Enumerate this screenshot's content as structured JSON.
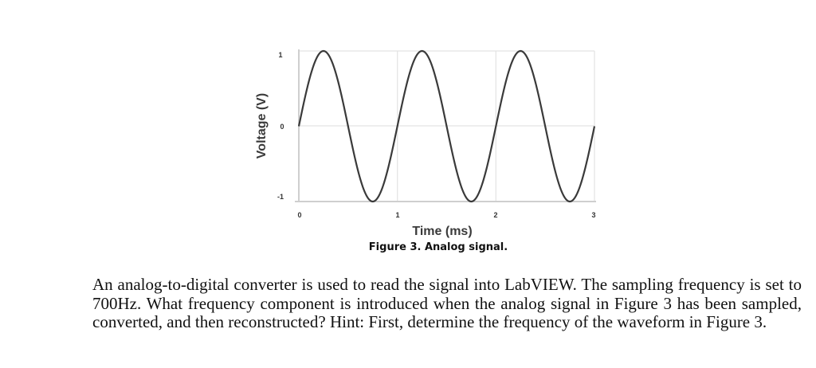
{
  "figure": {
    "caption": "Figure 3. Analog signal.",
    "ylabel": "Voltage (V)",
    "xlabel": "Time (ms)",
    "yticks": [
      "1",
      "0",
      "-1"
    ],
    "xticks": [
      "0",
      "1",
      "2",
      "3"
    ]
  },
  "chart_data": {
    "type": "line",
    "title": "Figure 3. Analog signal.",
    "xlabel": "Time (ms)",
    "ylabel": "Voltage (V)",
    "xlim": [
      0,
      3
    ],
    "ylim": [
      -1,
      1
    ],
    "xticks": [
      0,
      1,
      2,
      3
    ],
    "yticks": [
      -1,
      0,
      1
    ],
    "grid": true,
    "legend": null,
    "series": [
      {
        "name": "Analog signal",
        "description": "sine wave, amplitude 1 V, period 1 ms (1 kHz), starting at 0 V rising",
        "x": [
          0,
          0.25,
          0.5,
          0.75,
          1.0,
          1.25,
          1.5,
          1.75,
          2.0,
          2.25,
          2.5,
          2.75,
          3.0
        ],
        "values": [
          0,
          1,
          0,
          -1,
          0,
          1,
          0,
          -1,
          0,
          1,
          0,
          -1,
          0
        ]
      }
    ]
  },
  "question": {
    "text": "An analog-to-digital converter is used to read the signal into LabVIEW. The sampling frequency is set to 700Hz. What frequency component is introduced when the analog signal in Figure 3 has been sampled, converted, and then reconstructed? Hint: First, determine the frequency of the waveform in Figure 3."
  }
}
